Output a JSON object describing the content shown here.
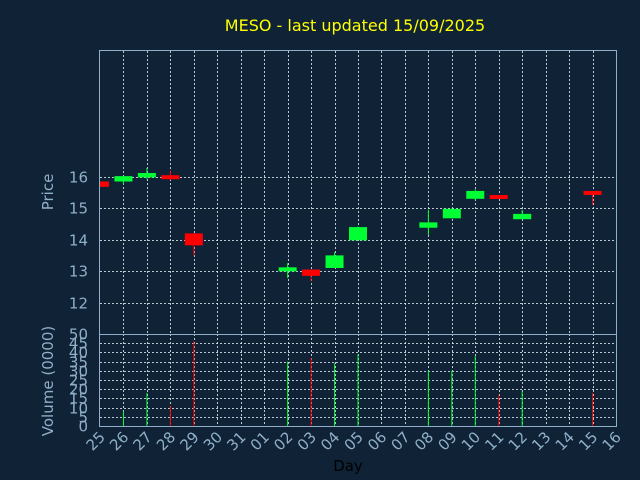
{
  "chart_data": {
    "type": "candlestick",
    "title": "MESO - last updated 15/09/2025",
    "xlabel": "Day",
    "price_panel": {
      "ylabel": "Price",
      "ylim": [
        11,
        20
      ],
      "yticks": [
        12,
        13,
        14,
        15,
        16
      ]
    },
    "volume_panel": {
      "ylabel": "Volume (0000)",
      "ylim": [
        0,
        50
      ],
      "yticks": [
        0,
        5,
        10,
        15,
        20,
        25,
        30,
        35,
        40,
        45,
        50
      ]
    },
    "x_ticks": [
      "25",
      "26",
      "27",
      "28",
      "29",
      "30",
      "31",
      "01",
      "02",
      "03",
      "04",
      "05",
      "06",
      "07",
      "08",
      "09",
      "10",
      "11",
      "12",
      "13",
      "14",
      "15",
      "16"
    ],
    "candles": [
      {
        "day": "25",
        "open": 15.85,
        "high": 15.85,
        "low": 15.68,
        "close": 15.68,
        "volume": 0
      },
      {
        "day": "26",
        "open": 15.85,
        "high": 16.02,
        "low": 15.75,
        "close": 16.02,
        "volume": 8
      },
      {
        "day": "27",
        "open": 15.98,
        "high": 16.28,
        "low": 15.92,
        "close": 16.12,
        "volume": 18
      },
      {
        "day": "28",
        "open": 16.05,
        "high": 16.2,
        "low": 15.9,
        "close": 15.98,
        "volume": 11
      },
      {
        "day": "29",
        "open": 14.2,
        "high": 14.2,
        "low": 13.5,
        "close": 13.82,
        "volume": 46
      },
      {
        "day": "02",
        "open": 13.05,
        "high": 13.25,
        "low": 12.78,
        "close": 13.12,
        "volume": 35
      },
      {
        "day": "03",
        "open": 13.05,
        "high": 13.05,
        "low": 12.68,
        "close": 12.85,
        "volume": 37
      },
      {
        "day": "04",
        "open": 13.1,
        "high": 13.6,
        "low": 13.1,
        "close": 13.5,
        "volume": 34
      },
      {
        "day": "05",
        "open": 13.98,
        "high": 14.42,
        "low": 13.98,
        "close": 14.4,
        "volume": 39
      },
      {
        "day": "08",
        "open": 14.38,
        "high": 14.95,
        "low": 14.15,
        "close": 14.55,
        "volume": 30
      },
      {
        "day": "09",
        "open": 14.68,
        "high": 15.0,
        "low": 14.68,
        "close": 14.98,
        "volume": 30
      },
      {
        "day": "10",
        "open": 15.3,
        "high": 15.6,
        "low": 15.25,
        "close": 15.55,
        "volume": 38
      },
      {
        "day": "11",
        "open": 15.42,
        "high": 15.42,
        "low": 15.32,
        "close": 15.35,
        "volume": 17
      },
      {
        "day": "12",
        "open": 14.65,
        "high": 14.95,
        "low": 14.65,
        "close": 14.82,
        "volume": 19
      },
      {
        "day": "15",
        "open": 15.55,
        "high": 15.55,
        "low": 15.1,
        "close": 15.45,
        "volume": 18
      }
    ]
  }
}
